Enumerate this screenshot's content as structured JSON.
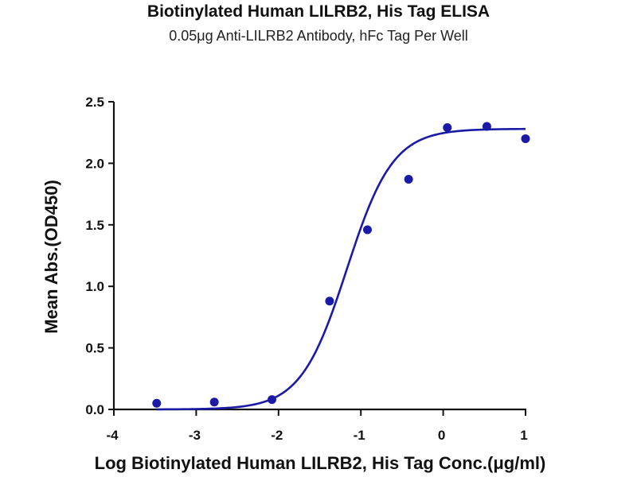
{
  "colors": {
    "series": "#1a1aa6",
    "axis": "#111111",
    "background": "#ffffff"
  },
  "chart_data": {
    "type": "scatter",
    "title": "Biotinylated Human LILRB2, His Tag ELISA",
    "subtitle": "0.05μg Anti-LILRB2 Antibody, hFc Tag Per Well",
    "xlabel": "Log Biotinylated Human LILRB2, His Tag Conc.(μg/ml)",
    "ylabel": "Mean Abs.(OD450)",
    "xlim": [
      -4,
      1
    ],
    "ylim": [
      0,
      2.5
    ],
    "x_ticks": [
      "-4",
      "-3",
      "-2",
      "-1",
      "0",
      "1"
    ],
    "y_ticks": [
      "0.0",
      "0.5",
      "1.0",
      "1.5",
      "2.0",
      "2.5"
    ],
    "grid": false,
    "legend": "none",
    "series": [
      {
        "points": [
          {
            "x": -3.48,
            "y": 0.05
          },
          {
            "x": -2.78,
            "y": 0.06
          },
          {
            "x": -2.08,
            "y": 0.08
          },
          {
            "x": -1.38,
            "y": 0.88
          },
          {
            "x": -0.92,
            "y": 1.46
          },
          {
            "x": -0.42,
            "y": 1.87
          },
          {
            "x": 0.05,
            "y": 2.29
          },
          {
            "x": 0.53,
            "y": 2.3
          },
          {
            "x": 1.0,
            "y": 2.2
          }
        ],
        "fit": {
          "model": "4PL",
          "bottom": 0.0,
          "top": 2.28,
          "logEC50": -1.17,
          "hill": 1.55
        }
      }
    ]
  }
}
